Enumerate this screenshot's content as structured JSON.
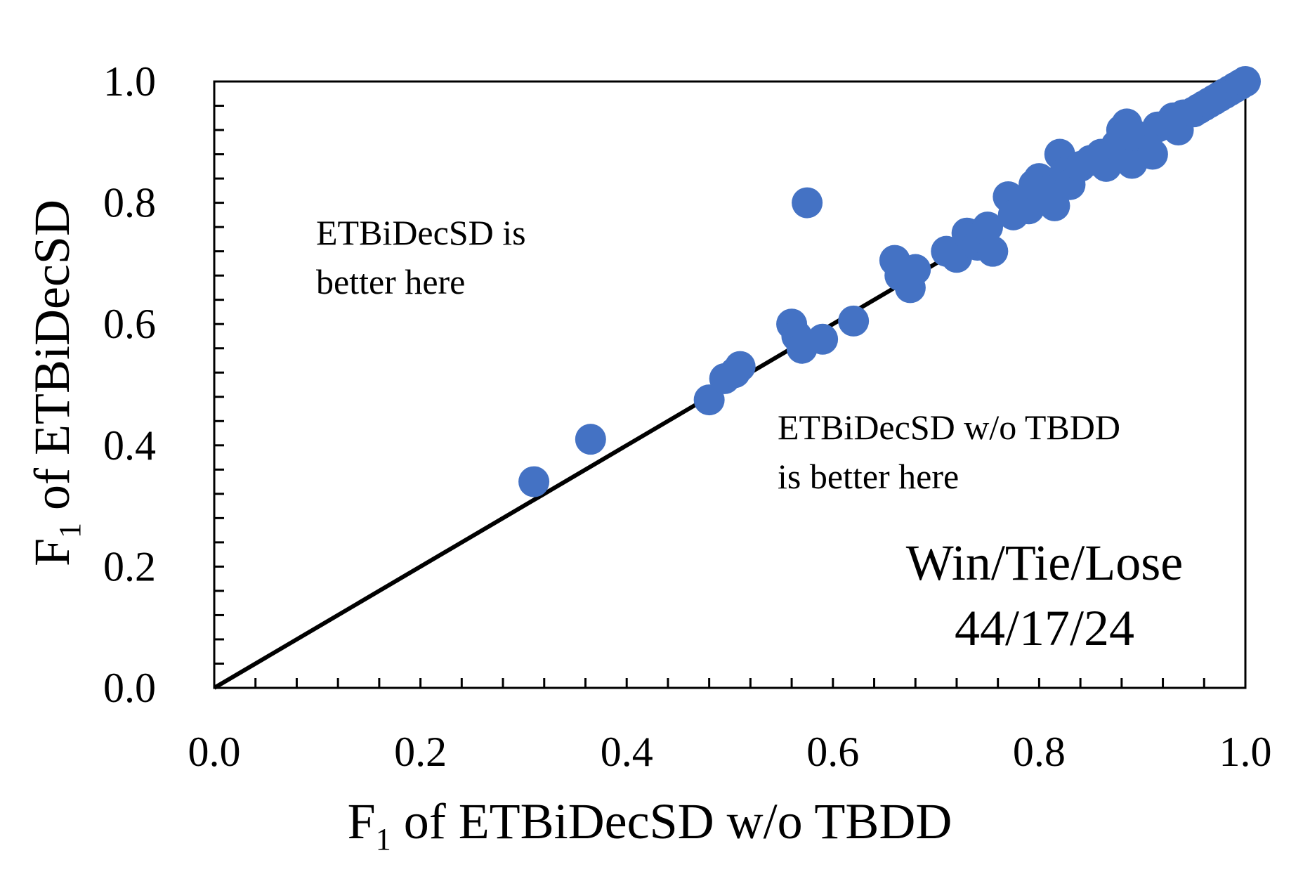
{
  "chart_data": {
    "type": "scatter",
    "xlabel": {
      "prefix": "F",
      "sub": "1",
      "rest": " of ETBiDecSD w/o TBDD"
    },
    "ylabel": {
      "prefix": "F",
      "sub": "1",
      "rest": " of ETBiDecSD"
    },
    "xlim": [
      0,
      1
    ],
    "ylim": [
      0,
      1
    ],
    "x_ticks": [
      "0.0",
      "0.2",
      "0.4",
      "0.6",
      "0.8",
      "1.0"
    ],
    "y_ticks": [
      "0.0",
      "0.2",
      "0.4",
      "0.6",
      "0.8",
      "1.0"
    ],
    "grid": false,
    "colors": {
      "points": "#4472C4",
      "line": "#000000"
    },
    "reference_line": {
      "from": [
        0,
        0
      ],
      "to": [
        1,
        1
      ]
    },
    "annotations": {
      "upper_left": [
        "ETBiDecSD is",
        "better here"
      ],
      "lower_right": [
        "ETBiDecSD w/o TBDD",
        "is better here"
      ],
      "score_title": "Win/Tie/Lose",
      "score_value": "44/17/24"
    },
    "points": [
      {
        "x": 0.31,
        "y": 0.34
      },
      {
        "x": 0.365,
        "y": 0.41
      },
      {
        "x": 0.48,
        "y": 0.475
      },
      {
        "x": 0.495,
        "y": 0.51
      },
      {
        "x": 0.505,
        "y": 0.52
      },
      {
        "x": 0.51,
        "y": 0.53
      },
      {
        "x": 0.56,
        "y": 0.6
      },
      {
        "x": 0.565,
        "y": 0.58
      },
      {
        "x": 0.57,
        "y": 0.56
      },
      {
        "x": 0.575,
        "y": 0.8
      },
      {
        "x": 0.59,
        "y": 0.575
      },
      {
        "x": 0.62,
        "y": 0.605
      },
      {
        "x": 0.66,
        "y": 0.705
      },
      {
        "x": 0.665,
        "y": 0.68
      },
      {
        "x": 0.675,
        "y": 0.66
      },
      {
        "x": 0.68,
        "y": 0.69
      },
      {
        "x": 0.71,
        "y": 0.72
      },
      {
        "x": 0.72,
        "y": 0.71
      },
      {
        "x": 0.73,
        "y": 0.75
      },
      {
        "x": 0.74,
        "y": 0.73
      },
      {
        "x": 0.75,
        "y": 0.76
      },
      {
        "x": 0.755,
        "y": 0.72
      },
      {
        "x": 0.77,
        "y": 0.81
      },
      {
        "x": 0.775,
        "y": 0.78
      },
      {
        "x": 0.785,
        "y": 0.8
      },
      {
        "x": 0.79,
        "y": 0.79
      },
      {
        "x": 0.795,
        "y": 0.83
      },
      {
        "x": 0.8,
        "y": 0.84
      },
      {
        "x": 0.805,
        "y": 0.81
      },
      {
        "x": 0.81,
        "y": 0.82
      },
      {
        "x": 0.815,
        "y": 0.795
      },
      {
        "x": 0.82,
        "y": 0.88
      },
      {
        "x": 0.825,
        "y": 0.85
      },
      {
        "x": 0.83,
        "y": 0.83
      },
      {
        "x": 0.84,
        "y": 0.86
      },
      {
        "x": 0.85,
        "y": 0.87
      },
      {
        "x": 0.86,
        "y": 0.88
      },
      {
        "x": 0.865,
        "y": 0.86
      },
      {
        "x": 0.875,
        "y": 0.895
      },
      {
        "x": 0.88,
        "y": 0.92
      },
      {
        "x": 0.885,
        "y": 0.93
      },
      {
        "x": 0.89,
        "y": 0.865
      },
      {
        "x": 0.895,
        "y": 0.91
      },
      {
        "x": 0.91,
        "y": 0.88
      },
      {
        "x": 0.915,
        "y": 0.925
      },
      {
        "x": 0.925,
        "y": 0.93
      },
      {
        "x": 0.93,
        "y": 0.94
      },
      {
        "x": 0.935,
        "y": 0.92
      },
      {
        "x": 0.94,
        "y": 0.945
      },
      {
        "x": 0.95,
        "y": 0.95
      },
      {
        "x": 0.955,
        "y": 0.955
      },
      {
        "x": 0.96,
        "y": 0.96
      },
      {
        "x": 0.965,
        "y": 0.965
      },
      {
        "x": 0.97,
        "y": 0.97
      },
      {
        "x": 0.975,
        "y": 0.975
      },
      {
        "x": 0.98,
        "y": 0.98
      },
      {
        "x": 0.985,
        "y": 0.985
      },
      {
        "x": 0.99,
        "y": 0.99
      },
      {
        "x": 0.995,
        "y": 0.995
      },
      {
        "x": 1.0,
        "y": 1.0
      }
    ]
  }
}
